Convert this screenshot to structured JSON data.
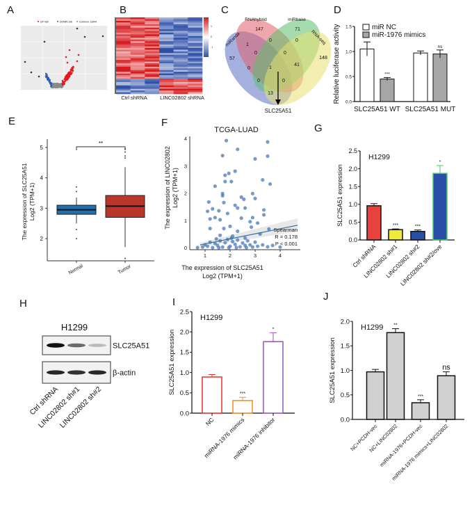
{
  "panel_labels": [
    "A",
    "B",
    "C",
    "D",
    "E",
    "F",
    "G",
    "H",
    "I",
    "J"
  ],
  "chart_data": [
    {
      "panel": "A",
      "type": "scatter",
      "legend": [
        "UP 430",
        "DOWN 106",
        "Common 13944"
      ],
      "colors": {
        "up": "#e41a1c",
        "down": "#2f5fb3",
        "common": "#888888",
        "background": "#ebebeb"
      }
    },
    {
      "panel": "B",
      "type": "heatmap",
      "xlabels": [
        "Ctrl shRNA",
        "LINC02802 shRNA"
      ],
      "colorbar_ticks": [
        "1",
        "0",
        "-1"
      ],
      "colors": {
        "high": "#d7191c",
        "mid": "#ffffff",
        "low": "#2c4fa8"
      }
    },
    {
      "panel": "C",
      "type": "venn",
      "sets": [
        "miRanda",
        "RNAhybrid",
        "miRbase",
        "RNA-seq"
      ],
      "region_counts": [
        "57",
        "147",
        "71",
        "148",
        "1",
        "0",
        "0",
        "0",
        "0",
        "0",
        "1",
        "41",
        "0",
        "0",
        "13"
      ],
      "result_label": "SLC25A51",
      "colors": [
        "#5b6fc4",
        "#e0606a",
        "#5cbf6a",
        "#e8e070"
      ]
    },
    {
      "panel": "D",
      "type": "bar",
      "ylabel": "Relative  luciferase activity",
      "categories": [
        "SLC25A51 WT",
        "SLC25A51 MUT"
      ],
      "ylim": [
        0,
        1.5
      ],
      "yticks": [
        "0.0",
        "0.5",
        "1.0",
        "1.5"
      ],
      "legend": "top-left",
      "series": [
        {
          "name": "miR NC",
          "values": [
            1.05,
            0.97
          ],
          "errors": [
            0.14,
            0.04
          ],
          "color": "#ffffff"
        },
        {
          "name": "miR-1976 mimics",
          "values": [
            0.45,
            0.95
          ],
          "errors": [
            0.03,
            0.08
          ],
          "color": "#a6a6a6"
        }
      ],
      "annotations": [
        [
          "",
          "***"
        ],
        [
          "",
          "ns"
        ]
      ]
    },
    {
      "panel": "E",
      "type": "box",
      "ylabel_line1": "The expression of SLC25A51",
      "ylabel_line2": "Log2 (TPM+1)",
      "categories": [
        "Normal",
        "Tumor"
      ],
      "yticks": [
        "2",
        "3",
        "4",
        "5"
      ],
      "ylim": [
        1.3,
        5.3
      ],
      "significance": "**",
      "boxes": [
        {
          "q1": 2.8,
          "median": 2.95,
          "q3": 3.1,
          "whisker_low": 2.5,
          "whisker_high": 3.35,
          "outliers": [
            3.7,
            3.55,
            2.3,
            2.0
          ],
          "color": "#1f6fae"
        },
        {
          "q1": 2.7,
          "median": 3.07,
          "q3": 3.42,
          "whisker_low": 1.72,
          "whisker_high": 4.35,
          "outliers": [
            4.65,
            4.72,
            4.85,
            4.95,
            1.35
          ],
          "color": "#b8362a"
        }
      ]
    },
    {
      "panel": "F",
      "type": "scatter",
      "title": "TCGA-LUAD",
      "xlabel_line1": "The expression of SLC25A51",
      "xlabel_line2": "Log2 (TPM+1)",
      "ylabel_line1": "The expression of LINC02802",
      "ylabel_line2": "Log2 (TPM+1)",
      "xticks": [
        "1",
        "2",
        "3",
        "4"
      ],
      "yticks": [
        "0",
        "1",
        "2",
        "3",
        "4"
      ],
      "xlim": [
        0.6,
        4.8
      ],
      "ylim": [
        0,
        4
      ],
      "stat_lines": [
        "Spearman",
        "R = 0.178",
        "P < 0.001"
      ],
      "fit_line": [
        [
          0.8,
          0.1
        ],
        [
          4.7,
          0.82
        ]
      ],
      "color": "#4a78b8",
      "points": [
        [
          1.85,
          3.92
        ],
        [
          3.5,
          3.87
        ],
        [
          2.3,
          3.6
        ],
        [
          1.7,
          3.37
        ],
        [
          3.5,
          3.35
        ],
        [
          3.0,
          3.25
        ],
        [
          1.8,
          2.65
        ],
        [
          1.95,
          2.72
        ],
        [
          2.2,
          2.8
        ],
        [
          1.8,
          2.42
        ],
        [
          2.05,
          2.42
        ],
        [
          3.3,
          2.48
        ],
        [
          3.6,
          2.33
        ],
        [
          1.4,
          2.25
        ],
        [
          1.7,
          1.98
        ],
        [
          1.7,
          1.9
        ],
        [
          2.9,
          1.98
        ],
        [
          2.45,
          1.85
        ],
        [
          2.55,
          1.77
        ],
        [
          3.0,
          1.8
        ],
        [
          1.15,
          1.67
        ],
        [
          1.75,
          1.65
        ],
        [
          1.3,
          1.42
        ],
        [
          1.1,
          1.33
        ],
        [
          1.55,
          1.35
        ],
        [
          2.2,
          1.55
        ],
        [
          2.3,
          1.45
        ],
        [
          2.6,
          1.45
        ],
        [
          3.35,
          1.38
        ],
        [
          1.9,
          1.25
        ],
        [
          3.35,
          1.2
        ],
        [
          1.2,
          1.05
        ],
        [
          1.4,
          1.1
        ],
        [
          1.6,
          1.02
        ],
        [
          2.45,
          1.08
        ],
        [
          2.9,
          1.1
        ],
        [
          2.8,
          0.95
        ],
        [
          3.1,
          0.9
        ],
        [
          1.75,
          0.7
        ],
        [
          2.0,
          0.78
        ],
        [
          2.85,
          0.75
        ],
        [
          1.2,
          0.7
        ],
        [
          2.3,
          0.6
        ],
        [
          3.2,
          0.5
        ],
        [
          3.55,
          0.68
        ],
        [
          1.6,
          0.45
        ],
        [
          2.1,
          0.42
        ],
        [
          2.6,
          0.35
        ],
        [
          0.7,
          0.0
        ],
        [
          0.9,
          0.02
        ],
        [
          1.0,
          0.1
        ],
        [
          1.1,
          0.05
        ],
        [
          1.2,
          0.2
        ],
        [
          1.3,
          0.0
        ],
        [
          1.4,
          0.15
        ],
        [
          1.5,
          0.08
        ],
        [
          1.6,
          0.25
        ],
        [
          1.7,
          0.02
        ],
        [
          1.8,
          0.18
        ],
        [
          1.9,
          0.3
        ],
        [
          2.0,
          0.05
        ],
        [
          2.1,
          0.22
        ],
        [
          2.2,
          0.12
        ],
        [
          2.3,
          0.28
        ],
        [
          2.4,
          0.03
        ],
        [
          2.5,
          0.17
        ],
        [
          2.6,
          0.08
        ],
        [
          2.7,
          0.25
        ],
        [
          2.8,
          0.1
        ],
        [
          2.9,
          0.02
        ],
        [
          3.0,
          0.2
        ],
        [
          3.1,
          0.05
        ],
        [
          3.3,
          0.1
        ],
        [
          3.5,
          0.03
        ],
        [
          3.7,
          0.08
        ],
        [
          4.0,
          0.02
        ],
        [
          1.55,
          0.0
        ],
        [
          1.95,
          0.0
        ],
        [
          2.25,
          0.0
        ],
        [
          2.65,
          0.0
        ],
        [
          2.05,
          0.35
        ],
        [
          1.45,
          0.32
        ]
      ]
    },
    {
      "panel": "G",
      "type": "bar",
      "title": "H1299",
      "ylabel": "SLC25A51 expression",
      "categories": [
        "Ctrl shRNA",
        "LINC02802 sh#1",
        "LINC02802 sh#2",
        "LINC02802 sh#2/ove"
      ],
      "ylim": [
        0,
        2.5
      ],
      "yticks": [
        "0.0",
        "0.5",
        "1.0",
        "1.5",
        "2.0",
        "2.5"
      ],
      "values": [
        0.96,
        0.29,
        0.24,
        1.87
      ],
      "errors": [
        0.06,
        0.02,
        0.04,
        0.22
      ],
      "annotations": [
        "",
        "***",
        "***",
        "*"
      ],
      "fill_colors": [
        "#e8423f",
        "#f0e83a",
        "#2a4fa8",
        "#2a4fa8"
      ],
      "edge_colors": [
        "#111111",
        "#111111",
        "#111111",
        "#3fcf60"
      ]
    },
    {
      "panel": "H",
      "type": "western-blot",
      "title": "H1299",
      "bands": [
        "SLC25A51",
        "β-actin"
      ],
      "lanes": [
        "Ctrl shRNA",
        "LINC02802 sh#1",
        "LINC02802 sh#2"
      ],
      "intensities": [
        [
          1.0,
          0.6,
          0.25
        ],
        [
          0.9,
          0.85,
          0.9
        ]
      ]
    },
    {
      "panel": "I",
      "type": "bar",
      "title": "H1299",
      "ylabel": "SLC25A51 expression",
      "categories": [
        "NC",
        "miRNA-1976 mimics",
        "miRNA-1976 inhibitor"
      ],
      "ylim": [
        0,
        2.5
      ],
      "yticks": [
        "0.0",
        "0.5",
        "1.0",
        "1.5",
        "2.0",
        "2.5"
      ],
      "values": [
        0.89,
        0.31,
        1.76
      ],
      "errors": [
        0.06,
        0.08,
        0.22
      ],
      "annotations": [
        "",
        "***",
        "*"
      ],
      "fill_colors": [
        "#ffffff",
        "#ffffff",
        "#ffffff"
      ],
      "edge_colors": [
        "#e83030",
        "#f08a20",
        "#9a4fc0"
      ]
    },
    {
      "panel": "J",
      "type": "bar",
      "title": "H1299",
      "ylabel": "SLC25A51 expression",
      "categories": [
        "NC+PCDH-vec",
        "NC+LINC02802",
        "miRNA-1976+PCDH-vec",
        "miRNA-1976 mimics+LINC02802"
      ],
      "ylim": [
        0,
        2.0
      ],
      "yticks": [
        "0.0",
        "0.5",
        "1.0",
        "1.5",
        "2.0"
      ],
      "values": [
        0.97,
        1.77,
        0.34,
        0.89
      ],
      "errors": [
        0.05,
        0.08,
        0.06,
        0.08
      ],
      "annotations": [
        "",
        "**",
        "***",
        "ns"
      ],
      "fill_colors": [
        "#d0d0d0",
        "#d0d0d0",
        "#d0d0d0",
        "#d0d0d0"
      ],
      "edge_colors": [
        "#111111",
        "#111111",
        "#111111",
        "#111111"
      ]
    }
  ]
}
